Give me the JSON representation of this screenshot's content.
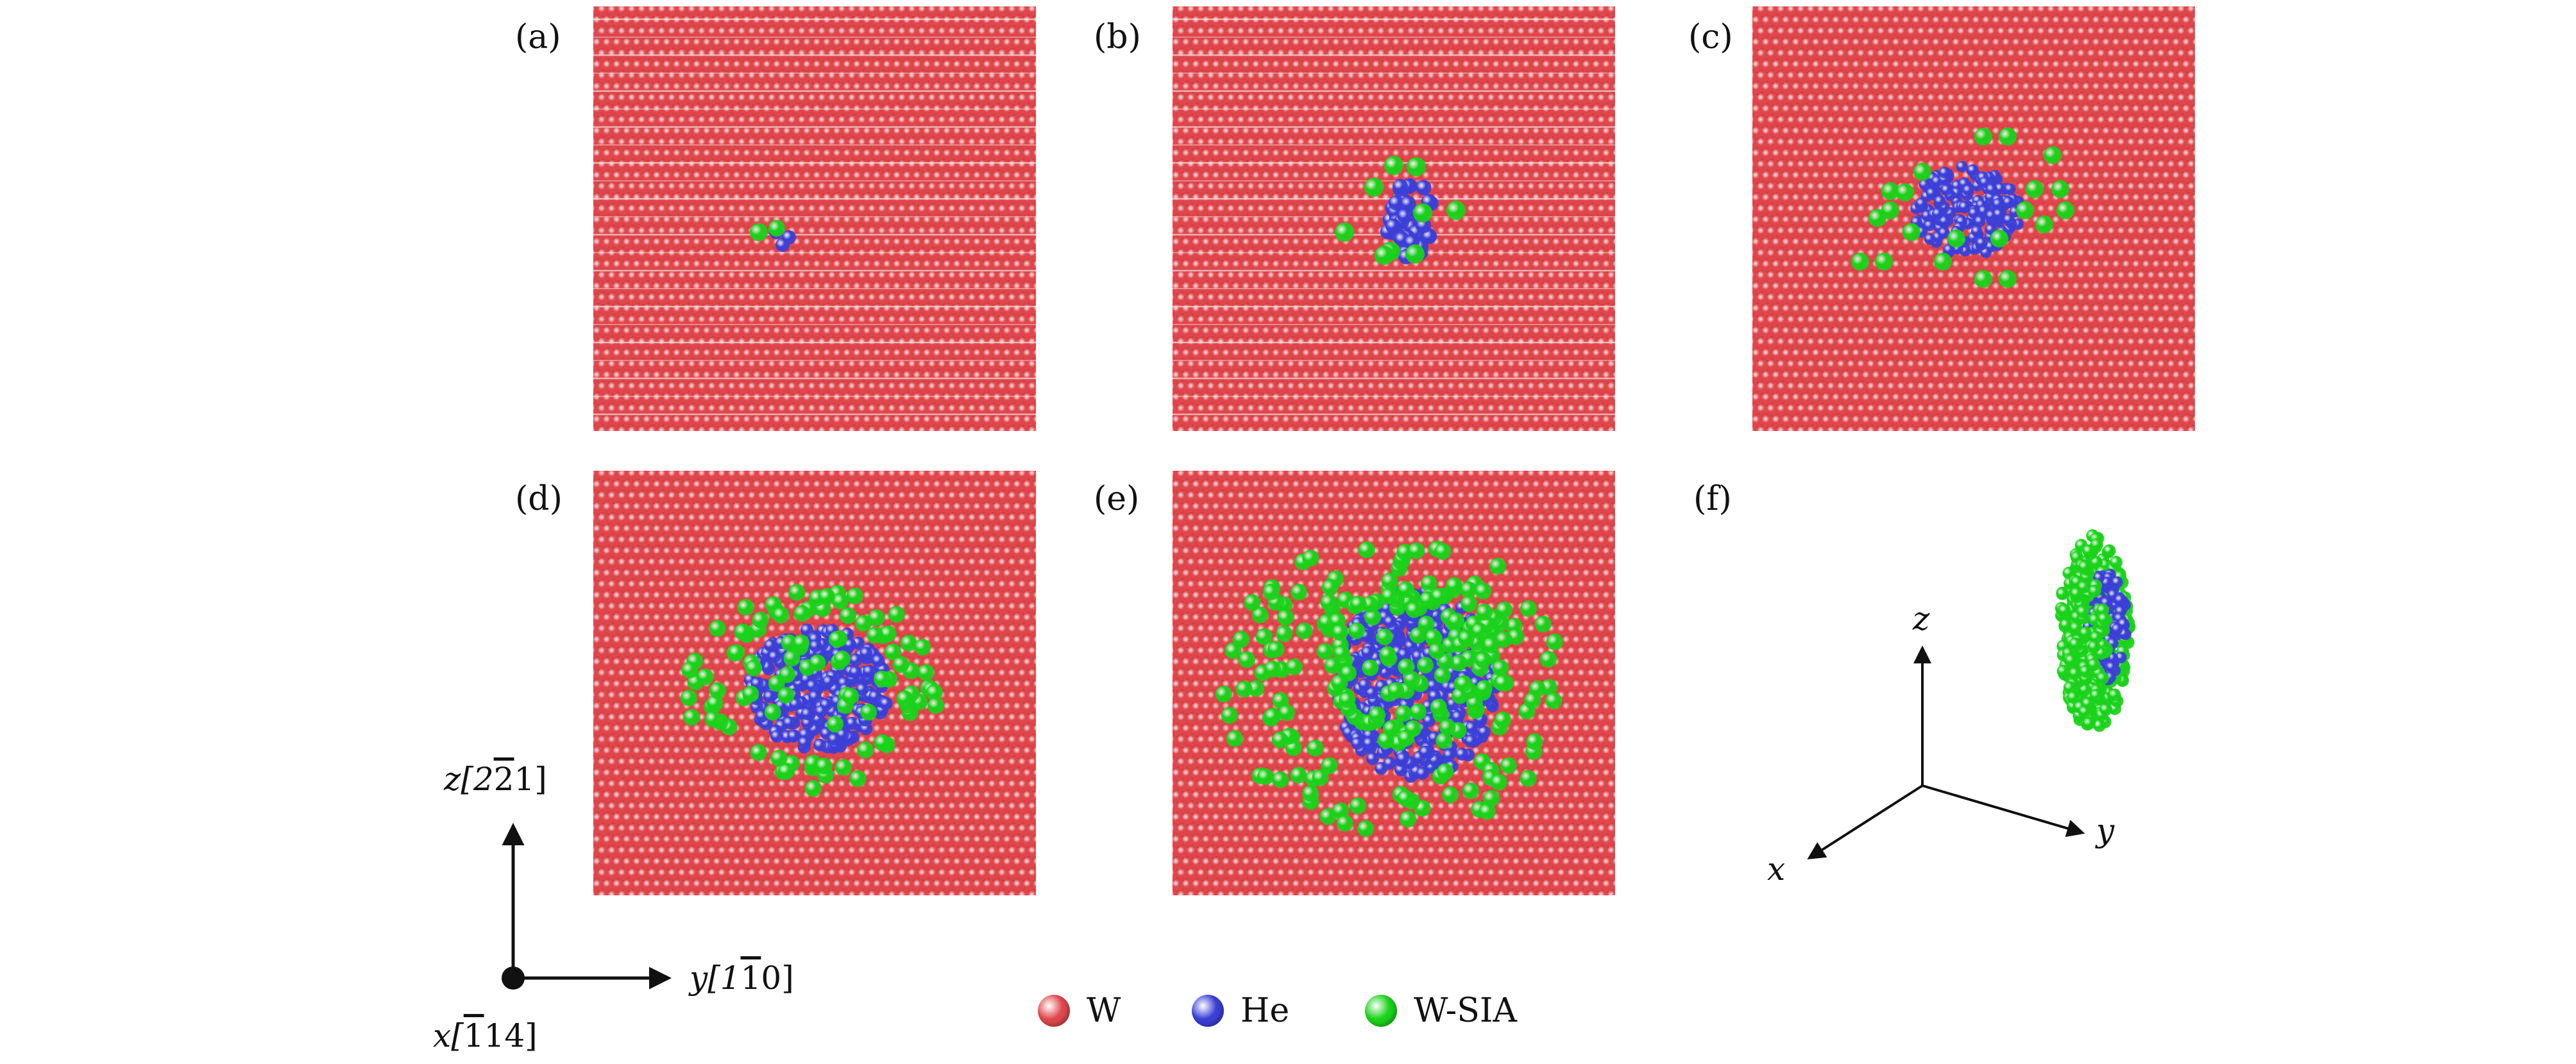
{
  "panel_labels": [
    "(a)",
    "(b)",
    "(c)",
    "(d)",
    "(e)",
    "(f)"
  ],
  "left_axes": {
    "z_label": "z[2",
    "z_label_bar": "2",
    "z_label_end": "1]",
    "y_label": "y[1",
    "y_label_bar": "1",
    "y_label_end": "0]",
    "x_label": "x[",
    "x_label_bar": "1",
    "x_label_end": "14]"
  },
  "right_axes": {
    "z": "z",
    "y": "y",
    "x": "x"
  },
  "legend": [
    {
      "label": "W",
      "color": "#e0474c"
    },
    {
      "label": "He",
      "color": "#3b3fd6"
    },
    {
      "label": "W-SIA",
      "color": "#19d219"
    }
  ],
  "colors": {
    "tungsten": "#e0474c",
    "helium": "#3b3fd6",
    "sia": "#19d219",
    "stripe": "#f2e0e0"
  }
}
